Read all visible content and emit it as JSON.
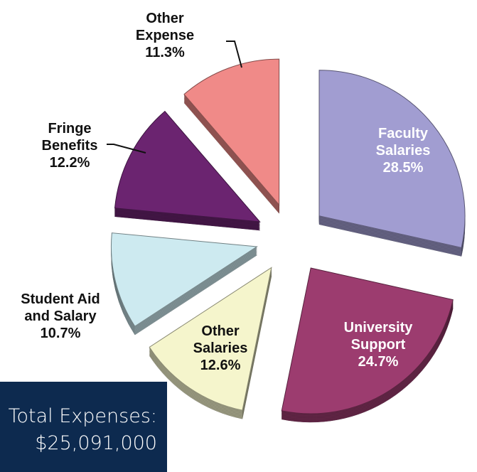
{
  "chart_data": {
    "type": "pie",
    "categories": [
      "Faculty Salaries",
      "University Support",
      "Other Salaries",
      "Student Aid and Salary",
      "Fringe Benefits",
      "Other Expense"
    ],
    "values": [
      28.5,
      24.7,
      12.6,
      10.7,
      12.2,
      11.3
    ],
    "value_labels": [
      "28.5%",
      "24.7%",
      "12.6%",
      "10.7%",
      "12.2%",
      "11.3%"
    ],
    "colors": [
      "#a19dd1",
      "#9c3c6f",
      "#f5f5cc",
      "#cdeaf0",
      "#6b2470",
      "#f08a88"
    ],
    "annotations": [
      "Total Expenses:",
      "$25,091,000"
    ]
  }
}
